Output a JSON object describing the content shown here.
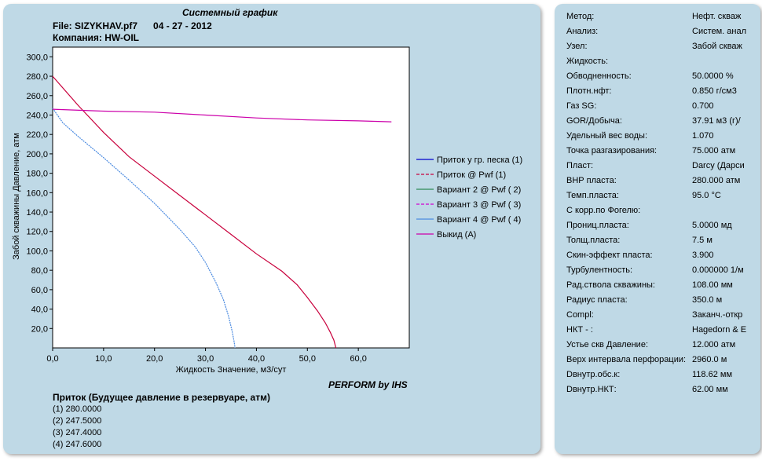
{
  "header": {
    "title": "Системный график",
    "file": "File: SIZYKHAV.pf7      04 - 27 - 2012",
    "company": "Компания: HW-OIL"
  },
  "footer": {
    "brand": "PERFORM by IHS",
    "inflow_title": "Приток (Будущее давление в резервуаре,  атм)",
    "inflow_rows": [
      "(1)  280.0000",
      "(2)  247.5000",
      "(3)  247.4000",
      "(4)  247.6000"
    ]
  },
  "colors": {
    "panel": "#bfd9e6",
    "series_1": "#0000cc",
    "series_2": "#c8003c",
    "series_3": "#2e8b57",
    "series_4": "#d000d0",
    "series_5": "#4a8ae0",
    "series_6": "#cc00aa"
  },
  "chart_data": {
    "type": "line",
    "xlabel": "Жидкость Значение, м3/сут",
    "ylabel": "Забой скважины Давление, атм",
    "xlim": [
      0,
      70
    ],
    "ylim": [
      0,
      310
    ],
    "x_ticks": [
      "0,0",
      "10,0",
      "20,0",
      "30,0",
      "40,0",
      "50,0",
      "60,0"
    ],
    "y_ticks": [
      "20,0",
      "40,0",
      "60,0",
      "80,0",
      "100,0",
      "120,0",
      "140,0",
      "160,0",
      "180,0",
      "200,0",
      "220,0",
      "240,0",
      "260,0",
      "280,0",
      "300,0"
    ],
    "legend_position": "right",
    "grid": false,
    "series": [
      {
        "name": "Приток у гр. песка (1)",
        "x": [],
        "y": []
      },
      {
        "name": "Приток @ Pwf (1)",
        "x": [
          0,
          5,
          10,
          15,
          20,
          25,
          30,
          35,
          40,
          45,
          48,
          50,
          52,
          53.5,
          54.5,
          55.2,
          55.6
        ],
        "y": [
          280,
          250,
          222,
          197,
          177,
          157,
          137,
          117,
          97,
          79,
          65,
          52,
          38,
          26,
          16,
          8,
          0
        ]
      },
      {
        "name": "Вариант  2 @ Pwf ( 2)",
        "x": [],
        "y": []
      },
      {
        "name": "Вариант  3 @ Pwf ( 3)",
        "x": [],
        "y": []
      },
      {
        "name": "Вариант  4 @ Pwf ( 4)",
        "x": [
          0,
          2,
          5,
          10,
          15,
          20,
          25,
          28,
          30,
          32,
          33.5,
          34.5,
          35.2,
          35.6,
          35.8
        ],
        "y": [
          247,
          232,
          218,
          196,
          173,
          149,
          122,
          104,
          88,
          68,
          50,
          33,
          18,
          7,
          0
        ]
      },
      {
        "name": "Выкид (A)",
        "x": [
          0,
          10,
          20,
          30,
          40,
          50,
          60,
          66.5
        ],
        "y": [
          246,
          244,
          243,
          240,
          237,
          235,
          234,
          233
        ]
      }
    ]
  },
  "properties": [
    {
      "label": "Метод:",
      "value": "Нефт. скваж"
    },
    {
      "label": "Анализ:",
      "value": "Систем. анал"
    },
    {
      "label": "Узел:",
      "value": "Забой скваж"
    },
    {
      "label": "Жидкость:",
      "value": ""
    },
    {
      "label": "Обводненность:",
      "value": "50.0000 %"
    },
    {
      "label": "Плотн.нфт:",
      "value": "0.850 г/см3"
    },
    {
      "label": "Газ SG:",
      "value": "0.700"
    },
    {
      "label": "GOR/Добыча:",
      "value": "37.91 м3 (г)/"
    },
    {
      "label": "Удельный вес воды:",
      "value": "1.070"
    },
    {
      "label": "Точка разгазирования:",
      "value": "75.000 атм"
    },
    {
      "label": "Пласт:",
      "value": "Darcy (Дарси"
    },
    {
      "label": "ВНР пласта:",
      "value": "280.000 атм"
    },
    {
      "label": "Темп.пласта:",
      "value": "95.0 °C"
    },
    {
      "label": "С корр.по Фогелю:",
      "value": ""
    },
    {
      "label": "Прониц.пласта:",
      "value": "5.0000 мд"
    },
    {
      "label": "Толщ.пласта:",
      "value": "7.5 м"
    },
    {
      "label": "Скин-эффект пласта:",
      "value": "3.900"
    },
    {
      "label": "Турбулентность:",
      "value": "0.000000 1/м"
    },
    {
      "label": "Рад.ствола скважины:",
      "value": "108.00 мм"
    },
    {
      "label": "Радиус пласта:",
      "value": "350.0 м"
    },
    {
      "label": "Compl:",
      "value": "Заканч.-откр"
    },
    {
      "label": "НКТ - :",
      "value": "Hagedorn & E"
    },
    {
      "label": "Устье скв Давление:",
      "value": "12.000 атм"
    },
    {
      "label": "Верх интервала перфорации:",
      "value": "2960.0 м"
    },
    {
      "label": "Dвнутр.обс.к:",
      "value": "118.62 мм"
    },
    {
      "label": "Dвнутр.НКТ:",
      "value": "62.00 мм"
    }
  ]
}
